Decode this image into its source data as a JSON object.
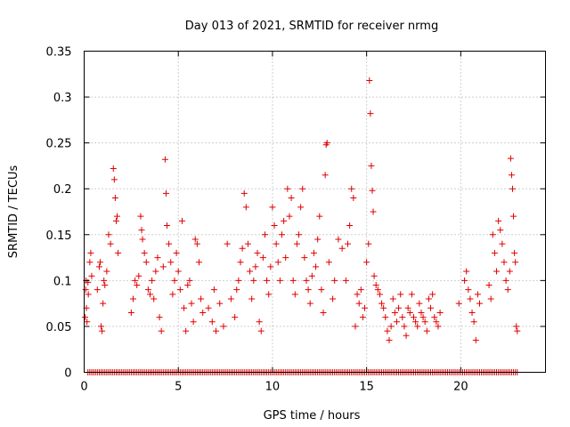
{
  "chart_data": {
    "type": "scatter",
    "title": "Day 013 of 2021, SRMTID for receiver nrmg",
    "xlabel": "GPS time / hours",
    "ylabel": "SRMTID / TECUs",
    "xlim": [
      0,
      24.5
    ],
    "ylim": [
      0,
      0.35
    ],
    "x_ticks": [
      0,
      5,
      10,
      15,
      20
    ],
    "x_tick_labels": [
      "0",
      "5",
      "10",
      "15",
      "20"
    ],
    "y_ticks": [
      0,
      0.05,
      0.1,
      0.15,
      0.2,
      0.25,
      0.3,
      0.35
    ],
    "y_tick_labels": [
      "0",
      "0.05",
      "0.1",
      "0.15",
      "0.2",
      "0.25",
      "0.3",
      "0.35"
    ],
    "grid": true,
    "marker": "+",
    "marker_color": "#e00000",
    "grid_color": "#a0a0a0",
    "series": [
      {
        "name": "SRMTID",
        "points": [
          [
            0.05,
            0.06
          ],
          [
            0.08,
            0.09
          ],
          [
            0.1,
            0.1
          ],
          [
            0.12,
            0.07
          ],
          [
            0.15,
            0.055
          ],
          [
            0.2,
            0.098
          ],
          [
            0.22,
            0.085
          ],
          [
            0.3,
            0.12
          ],
          [
            0.35,
            0.13
          ],
          [
            0.4,
            0.105
          ],
          [
            0.7,
            0.09
          ],
          [
            0.8,
            0.115
          ],
          [
            0.85,
            0.12
          ],
          [
            0.9,
            0.05
          ],
          [
            0.95,
            0.045
          ],
          [
            1.0,
            0.075
          ],
          [
            1.05,
            0.1
          ],
          [
            1.1,
            0.095
          ],
          [
            1.2,
            0.11
          ],
          [
            1.3,
            0.15
          ],
          [
            1.4,
            0.14
          ],
          [
            1.55,
            0.222
          ],
          [
            1.6,
            0.21
          ],
          [
            1.65,
            0.19
          ],
          [
            1.7,
            0.165
          ],
          [
            1.75,
            0.17
          ],
          [
            1.8,
            0.13
          ],
          [
            2.5,
            0.065
          ],
          [
            2.6,
            0.08
          ],
          [
            2.7,
            0.1
          ],
          [
            2.8,
            0.095
          ],
          [
            2.9,
            0.105
          ],
          [
            3.0,
            0.17
          ],
          [
            3.05,
            0.155
          ],
          [
            3.1,
            0.145
          ],
          [
            3.2,
            0.13
          ],
          [
            3.3,
            0.12
          ],
          [
            3.4,
            0.09
          ],
          [
            3.5,
            0.085
          ],
          [
            3.6,
            0.1
          ],
          [
            3.7,
            0.08
          ],
          [
            3.8,
            0.11
          ],
          [
            3.9,
            0.125
          ],
          [
            4.0,
            0.06
          ],
          [
            4.1,
            0.045
          ],
          [
            4.2,
            0.115
          ],
          [
            4.3,
            0.232
          ],
          [
            4.35,
            0.195
          ],
          [
            4.4,
            0.16
          ],
          [
            4.5,
            0.14
          ],
          [
            4.6,
            0.12
          ],
          [
            4.7,
            0.085
          ],
          [
            4.8,
            0.1
          ],
          [
            4.9,
            0.13
          ],
          [
            5.0,
            0.11
          ],
          [
            5.1,
            0.09
          ],
          [
            5.2,
            0.165
          ],
          [
            5.3,
            0.07
          ],
          [
            5.4,
            0.045
          ],
          [
            5.5,
            0.095
          ],
          [
            5.6,
            0.1
          ],
          [
            5.7,
            0.075
          ],
          [
            5.8,
            0.055
          ],
          [
            5.9,
            0.145
          ],
          [
            6.0,
            0.14
          ],
          [
            6.1,
            0.12
          ],
          [
            6.2,
            0.08
          ],
          [
            6.3,
            0.065
          ],
          [
            6.6,
            0.07
          ],
          [
            6.8,
            0.055
          ],
          [
            6.9,
            0.09
          ],
          [
            7.0,
            0.045
          ],
          [
            7.2,
            0.075
          ],
          [
            7.4,
            0.05
          ],
          [
            7.6,
            0.14
          ],
          [
            7.8,
            0.08
          ],
          [
            8.0,
            0.06
          ],
          [
            8.1,
            0.09
          ],
          [
            8.2,
            0.1
          ],
          [
            8.3,
            0.12
          ],
          [
            8.4,
            0.135
          ],
          [
            8.5,
            0.195
          ],
          [
            8.6,
            0.18
          ],
          [
            8.7,
            0.14
          ],
          [
            8.8,
            0.11
          ],
          [
            8.9,
            0.08
          ],
          [
            9.0,
            0.1
          ],
          [
            9.1,
            0.115
          ],
          [
            9.2,
            0.13
          ],
          [
            9.3,
            0.055
          ],
          [
            9.4,
            0.045
          ],
          [
            9.5,
            0.125
          ],
          [
            9.6,
            0.15
          ],
          [
            9.7,
            0.1
          ],
          [
            9.8,
            0.085
          ],
          [
            9.9,
            0.115
          ],
          [
            10.0,
            0.18
          ],
          [
            10.1,
            0.16
          ],
          [
            10.2,
            0.14
          ],
          [
            10.3,
            0.12
          ],
          [
            10.4,
            0.1
          ],
          [
            10.5,
            0.15
          ],
          [
            10.6,
            0.165
          ],
          [
            10.7,
            0.125
          ],
          [
            10.8,
            0.2
          ],
          [
            10.9,
            0.17
          ],
          [
            11.0,
            0.19
          ],
          [
            11.1,
            0.1
          ],
          [
            11.2,
            0.085
          ],
          [
            11.3,
            0.14
          ],
          [
            11.4,
            0.15
          ],
          [
            11.5,
            0.18
          ],
          [
            11.6,
            0.2
          ],
          [
            11.7,
            0.125
          ],
          [
            11.8,
            0.1
          ],
          [
            11.9,
            0.09
          ],
          [
            12.0,
            0.075
          ],
          [
            12.1,
            0.105
          ],
          [
            12.2,
            0.13
          ],
          [
            12.3,
            0.115
          ],
          [
            12.4,
            0.145
          ],
          [
            12.5,
            0.17
          ],
          [
            12.6,
            0.09
          ],
          [
            12.7,
            0.065
          ],
          [
            12.8,
            0.215
          ],
          [
            12.85,
            0.248
          ],
          [
            12.9,
            0.25
          ],
          [
            13.0,
            0.12
          ],
          [
            13.2,
            0.08
          ],
          [
            13.3,
            0.1
          ],
          [
            13.5,
            0.145
          ],
          [
            13.7,
            0.135
          ],
          [
            13.9,
            0.1
          ],
          [
            14.0,
            0.14
          ],
          [
            14.1,
            0.16
          ],
          [
            14.2,
            0.2
          ],
          [
            14.3,
            0.19
          ],
          [
            14.4,
            0.05
          ],
          [
            14.5,
            0.085
          ],
          [
            14.6,
            0.075
          ],
          [
            14.7,
            0.09
          ],
          [
            14.8,
            0.06
          ],
          [
            14.9,
            0.07
          ],
          [
            15.0,
            0.12
          ],
          [
            15.1,
            0.14
          ],
          [
            15.15,
            0.318
          ],
          [
            15.2,
            0.282
          ],
          [
            15.25,
            0.225
          ],
          [
            15.3,
            0.198
          ],
          [
            15.35,
            0.175
          ],
          [
            15.4,
            0.105
          ],
          [
            15.5,
            0.095
          ],
          [
            15.6,
            0.09
          ],
          [
            15.7,
            0.085
          ],
          [
            15.8,
            0.075
          ],
          [
            15.9,
            0.07
          ],
          [
            16.0,
            0.06
          ],
          [
            16.1,
            0.045
          ],
          [
            16.2,
            0.035
          ],
          [
            16.3,
            0.05
          ],
          [
            16.4,
            0.08
          ],
          [
            16.5,
            0.065
          ],
          [
            16.6,
            0.055
          ],
          [
            16.7,
            0.07
          ],
          [
            16.8,
            0.085
          ],
          [
            16.9,
            0.06
          ],
          [
            17.0,
            0.05
          ],
          [
            17.1,
            0.04
          ],
          [
            17.2,
            0.07
          ],
          [
            17.3,
            0.065
          ],
          [
            17.4,
            0.085
          ],
          [
            17.5,
            0.06
          ],
          [
            17.6,
            0.055
          ],
          [
            17.7,
            0.05
          ],
          [
            17.8,
            0.075
          ],
          [
            17.9,
            0.065
          ],
          [
            18.0,
            0.06
          ],
          [
            18.1,
            0.055
          ],
          [
            18.2,
            0.045
          ],
          [
            18.3,
            0.08
          ],
          [
            18.4,
            0.07
          ],
          [
            18.5,
            0.085
          ],
          [
            18.6,
            0.06
          ],
          [
            18.7,
            0.055
          ],
          [
            18.8,
            0.05
          ],
          [
            18.9,
            0.065
          ],
          [
            19.9,
            0.075
          ],
          [
            20.2,
            0.1
          ],
          [
            20.3,
            0.11
          ],
          [
            20.4,
            0.09
          ],
          [
            20.5,
            0.08
          ],
          [
            20.6,
            0.065
          ],
          [
            20.7,
            0.055
          ],
          [
            20.8,
            0.035
          ],
          [
            20.9,
            0.085
          ],
          [
            21.0,
            0.075
          ],
          [
            21.5,
            0.095
          ],
          [
            21.6,
            0.08
          ],
          [
            21.7,
            0.15
          ],
          [
            21.8,
            0.13
          ],
          [
            21.9,
            0.11
          ],
          [
            22.0,
            0.165
          ],
          [
            22.1,
            0.155
          ],
          [
            22.2,
            0.14
          ],
          [
            22.3,
            0.12
          ],
          [
            22.4,
            0.1
          ],
          [
            22.5,
            0.09
          ],
          [
            22.6,
            0.11
          ],
          [
            22.65,
            0.233
          ],
          [
            22.7,
            0.215
          ],
          [
            22.75,
            0.2
          ],
          [
            22.8,
            0.17
          ],
          [
            22.85,
            0.13
          ],
          [
            22.9,
            0.12
          ],
          [
            22.95,
            0.05
          ],
          [
            23.0,
            0.045
          ]
        ]
      }
    ],
    "zero_points_x": [
      0.2,
      0.3,
      0.4,
      0.5,
      0.6,
      0.7,
      0.8,
      0.9,
      1.0,
      1.1,
      1.2,
      1.3,
      1.4,
      1.5,
      1.6,
      1.7,
      1.8,
      1.9,
      2.0,
      2.1,
      2.2,
      2.3,
      2.4,
      2.5,
      2.6,
      2.7,
      2.8,
      2.9,
      3.0,
      3.1,
      3.2,
      3.3,
      3.4,
      3.5,
      3.6,
      3.7,
      3.8,
      3.9,
      4.0,
      4.1,
      4.2,
      4.3,
      4.4,
      4.5,
      4.6,
      4.7,
      4.8,
      4.9,
      5.0,
      5.1,
      5.2,
      5.3,
      5.4,
      5.5,
      5.6,
      5.7,
      5.8,
      5.9,
      6.0,
      6.1,
      6.2,
      6.3,
      6.4,
      6.5,
      6.6,
      6.7,
      6.8,
      6.9,
      7.0,
      7.1,
      7.2,
      7.3,
      7.4,
      7.5,
      7.6,
      7.7,
      7.8,
      7.9,
      8.0,
      8.1,
      8.2,
      8.3,
      8.4,
      8.5,
      8.6,
      8.7,
      8.8,
      8.9,
      9.0,
      9.1,
      9.2,
      9.3,
      9.4,
      9.5,
      9.6,
      9.7,
      9.8,
      9.9,
      10.0,
      10.1,
      10.2,
      10.3,
      10.4,
      10.5,
      10.6,
      10.7,
      10.8,
      10.9,
      11.0,
      11.1,
      11.2,
      11.3,
      11.4,
      11.5,
      11.6,
      11.7,
      11.8,
      11.9,
      12.0,
      12.1,
      12.2,
      12.3,
      12.4,
      12.5,
      12.6,
      12.7,
      12.8,
      12.9,
      13.0,
      13.1,
      13.2,
      13.3,
      13.4,
      13.5,
      13.6,
      13.7,
      13.8,
      13.9,
      14.0,
      14.1,
      14.2,
      14.3,
      14.4,
      14.5,
      14.6,
      14.7,
      14.8,
      14.9,
      15.0,
      15.1,
      15.2,
      15.3,
      15.4,
      15.5,
      15.6,
      15.7,
      15.8,
      15.9,
      16.0,
      16.1,
      16.2,
      16.3,
      16.4,
      16.5,
      16.6,
      16.7,
      16.8,
      16.9,
      17.0,
      17.1,
      17.2,
      17.3,
      17.4,
      17.5,
      17.6,
      17.7,
      17.8,
      17.9,
      18.0,
      18.1,
      18.2,
      18.3,
      18.4,
      18.5,
      18.6,
      18.7,
      18.8,
      18.9,
      19.0,
      19.1,
      19.2,
      19.3,
      19.4,
      19.5,
      19.6,
      19.7,
      19.8,
      19.9,
      20.0,
      20.1,
      20.2,
      20.3,
      20.4,
      20.5,
      20.6,
      20.7,
      20.8,
      20.9,
      21.0,
      21.1,
      21.2,
      21.3,
      21.4,
      21.5,
      21.6,
      21.7,
      21.8,
      21.9,
      22.0,
      22.1,
      22.2,
      22.3,
      22.4,
      22.5,
      22.6,
      22.7,
      22.8,
      22.9,
      23.0
    ]
  }
}
